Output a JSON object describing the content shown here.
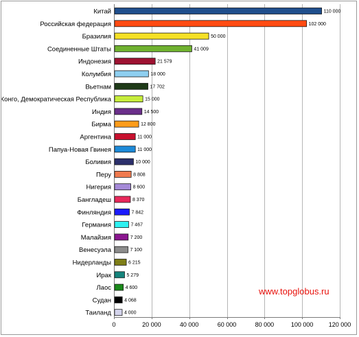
{
  "chart_data": {
    "type": "bar",
    "orientation": "horizontal",
    "title": "",
    "xlabel": "",
    "ylabel": "",
    "xlim": [
      0,
      120000
    ],
    "x_ticks": [
      0,
      20000,
      40000,
      60000,
      80000,
      100000,
      120000
    ],
    "x_tick_labels": [
      "0",
      "20 000",
      "40 000",
      "60 000",
      "80 000",
      "100 000",
      "120 000"
    ],
    "grid": true,
    "legend": "none",
    "watermark": "www.topglobus.ru",
    "bars": [
      {
        "category": "Китай",
        "value": 110000,
        "label": "110 000",
        "color": "#1f4e8c"
      },
      {
        "category": "Российская федерация",
        "value": 102000,
        "label": "102 000",
        "color": "#ff4b12"
      },
      {
        "category": "Бразилия",
        "value": 50000,
        "label": "50 000",
        "color": "#f5e126"
      },
      {
        "category": "Соединенные Штаты",
        "value": 41009,
        "label": "41 009",
        "color": "#6fb12f"
      },
      {
        "category": "Индонезия",
        "value": 21579,
        "label": "21 579",
        "color": "#9e1231"
      },
      {
        "category": "Колумбия",
        "value": 18000,
        "label": "18 000",
        "color": "#8ecff0"
      },
      {
        "category": "Вьетнам",
        "value": 17702,
        "label": "17 702",
        "color": "#1e3a18"
      },
      {
        "category": "Конго, Демократическая Республика",
        "value": 15000,
        "label": "15 000",
        "color": "#c6ec3b"
      },
      {
        "category": "Индия",
        "value": 14500,
        "label": "14 500",
        "color": "#6a2e8a"
      },
      {
        "category": "Бирма",
        "value": 12800,
        "label": "12 800",
        "color": "#ff9c1a"
      },
      {
        "category": "Аргентина",
        "value": 11000,
        "label": "11 000",
        "color": "#c8102e"
      },
      {
        "category": "Папуа-Новая Гвинея",
        "value": 11000,
        "label": "11 000",
        "color": "#1d8ad8"
      },
      {
        "category": "Боливия",
        "value": 10000,
        "label": "10 000",
        "color": "#2b2f6b"
      },
      {
        "category": "Перу",
        "value": 8808,
        "label": "8 808",
        "color": "#f07a4e"
      },
      {
        "category": "Нигерия",
        "value": 8600,
        "label": "8 600",
        "color": "#a58ad8"
      },
      {
        "category": "Бангладеш",
        "value": 8370,
        "label": "8 370",
        "color": "#e8285a"
      },
      {
        "category": "Финляндия",
        "value": 7842,
        "label": "7 842",
        "color": "#1a1aff"
      },
      {
        "category": "Германия",
        "value": 7467,
        "label": "7 467",
        "color": "#2ef2f2"
      },
      {
        "category": "Малайзия",
        "value": 7200,
        "label": "7 200",
        "color": "#8a168f"
      },
      {
        "category": "Венесуэла",
        "value": 7100,
        "label": "7 100",
        "color": "#8c8c8c"
      },
      {
        "category": "Нидерланды",
        "value": 6215,
        "label": "6 215",
        "color": "#7d7d16"
      },
      {
        "category": "Ирак",
        "value": 5279,
        "label": "5 279",
        "color": "#15847c"
      },
      {
        "category": "Лаос",
        "value": 4600,
        "label": "4 600",
        "color": "#1a8a1a"
      },
      {
        "category": "Судан",
        "value": 4068,
        "label": "4 068",
        "color": "#000000"
      },
      {
        "category": "Таиланд",
        "value": 4000,
        "label": "4 000",
        "color": "#d4d4ec"
      }
    ]
  }
}
